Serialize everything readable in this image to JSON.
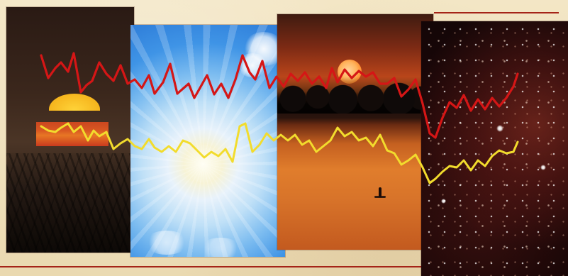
{
  "image": {
    "panels": [
      {
        "name": "sunset-grass-panel"
      },
      {
        "name": "sky-sunburst-panel"
      },
      {
        "name": "orange-lake-sunset-panel"
      },
      {
        "name": "red-star-field-panel"
      }
    ],
    "colors": {
      "background": "#efe2bf",
      "rule": "#a52418",
      "trace_red": "#d51616",
      "trace_yellow": "#f2dc2d"
    }
  }
}
